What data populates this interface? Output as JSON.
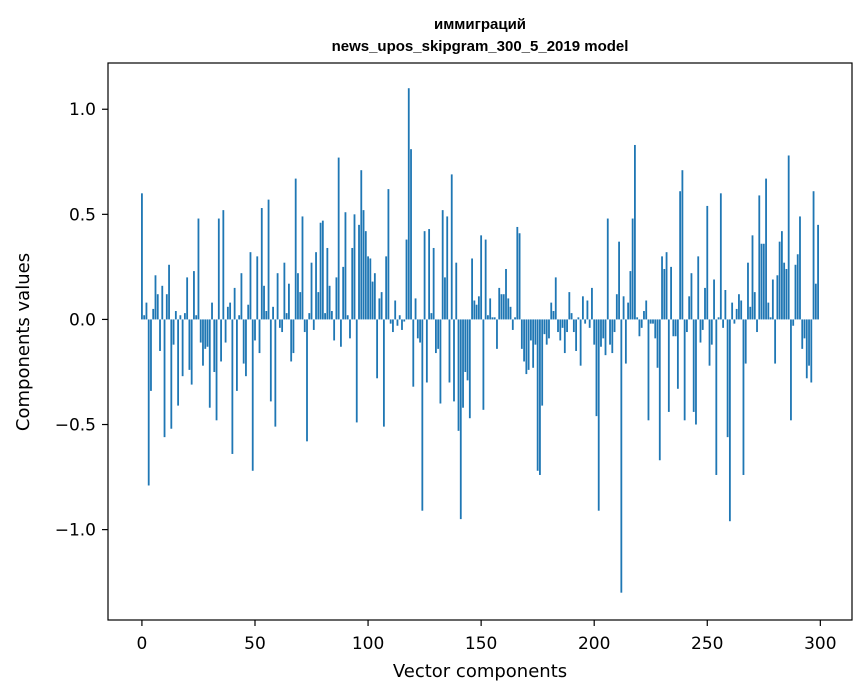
{
  "chart_data": {
    "type": "bar",
    "title_line1": "иммиграций",
    "title_line2": "news_upos_skipgram_300_5_2019 model",
    "xlabel": "Vector components",
    "ylabel": "Components values",
    "xlim": [
      -15,
      314
    ],
    "ylim": [
      -1.43,
      1.22
    ],
    "xticks": [
      0,
      50,
      100,
      150,
      200,
      250,
      300
    ],
    "xtick_labels": [
      "0",
      "50",
      "100",
      "150",
      "200",
      "250",
      "300"
    ],
    "yticks": [
      -1.0,
      -0.5,
      0.0,
      0.5,
      1.0
    ],
    "ytick_labels": [
      "−1.0",
      "−0.5",
      "0.0",
      "0.5",
      "1.0"
    ],
    "bar_color": "#1f77b4",
    "grid": false,
    "values": [
      0.6,
      0.02,
      0.08,
      -0.79,
      -0.34,
      0.05,
      0.21,
      0.12,
      -0.15,
      0.16,
      -0.56,
      0.12,
      0.26,
      -0.52,
      -0.12,
      0.04,
      -0.41,
      0.02,
      -0.27,
      0.03,
      0.2,
      -0.24,
      -0.31,
      0.23,
      0.02,
      0.48,
      -0.11,
      -0.22,
      -0.14,
      -0.13,
      -0.42,
      0.08,
      -0.25,
      -0.48,
      0.48,
      -0.2,
      0.52,
      -0.11,
      0.06,
      0.08,
      -0.64,
      0.15,
      -0.34,
      0.02,
      0.22,
      -0.21,
      -0.27,
      0.07,
      0.32,
      -0.72,
      -0.1,
      0.3,
      -0.16,
      0.53,
      0.16,
      0.04,
      0.57,
      -0.39,
      0.06,
      -0.51,
      0.22,
      -0.04,
      -0.06,
      0.27,
      0.03,
      0.17,
      -0.2,
      -0.16,
      0.67,
      0.22,
      0.13,
      0.49,
      -0.06,
      -0.58,
      0.03,
      0.27,
      -0.05,
      0.32,
      0.13,
      0.46,
      0.47,
      0.03,
      0.34,
      0.16,
      0.04,
      -0.1,
      0.2,
      0.77,
      -0.13,
      0.25,
      0.51,
      0.02,
      -0.09,
      0.34,
      0.5,
      -0.49,
      0.45,
      0.71,
      0.52,
      0.42,
      0.3,
      0.29,
      0.18,
      0.22,
      -0.28,
      0.1,
      0.13,
      -0.51,
      0.3,
      0.62,
      -0.02,
      -0.06,
      0.09,
      -0.03,
      0.02,
      -0.05,
      -0.01,
      0.38,
      1.1,
      0.81,
      -0.32,
      0.1,
      -0.09,
      -0.11,
      -0.91,
      0.42,
      -0.3,
      0.43,
      0.03,
      0.34,
      -0.16,
      -0.14,
      -0.4,
      0.52,
      0.2,
      0.49,
      -0.3,
      0.69,
      -0.39,
      0.27,
      -0.53,
      -0.95,
      -0.42,
      -0.25,
      -0.29,
      -0.47,
      0.29,
      0.09,
      0.07,
      0.11,
      0.4,
      -0.43,
      0.38,
      0.02,
      0.1,
      0.01,
      0.01,
      -0.14,
      0.15,
      0.12,
      0.12,
      0.24,
      0.1,
      0.06,
      -0.05,
      0.01,
      0.44,
      0.41,
      -0.14,
      -0.2,
      -0.26,
      -0.24,
      -0.1,
      -0.23,
      -0.12,
      -0.72,
      -0.74,
      -0.41,
      -0.07,
      -0.12,
      -0.09,
      0.08,
      0.04,
      0.2,
      -0.06,
      -0.1,
      -0.04,
      -0.16,
      -0.06,
      0.13,
      0.03,
      -0.06,
      -0.15,
      0.01,
      -0.22,
      0.11,
      -0.02,
      0.09,
      -0.04,
      0.15,
      -0.12,
      -0.46,
      -0.91,
      -0.13,
      -0.09,
      -0.17,
      0.48,
      -0.12,
      -0.16,
      -0.06,
      0.12,
      0.37,
      -1.3,
      0.11,
      -0.21,
      0.08,
      0.23,
      0.48,
      0.83,
      0.01,
      -0.08,
      -0.04,
      0.04,
      0.09,
      -0.48,
      -0.02,
      -0.02,
      -0.09,
      -0.23,
      -0.67,
      0.3,
      0.24,
      0.32,
      -0.44,
      0.25,
      -0.08,
      -0.08,
      -0.33,
      0.61,
      0.71,
      -0.48,
      -0.06,
      0.11,
      0.22,
      -0.44,
      -0.5,
      0.3,
      -0.11,
      -0.05,
      0.15,
      0.54,
      -0.22,
      -0.12,
      0.19,
      -0.74,
      0.01,
      0.6,
      -0.04,
      0.14,
      -0.56,
      -0.96,
      0.08,
      -0.02,
      0.05,
      0.12,
      0.09,
      -0.74,
      -0.21,
      0.27,
      0.06,
      0.4,
      0.13,
      -0.06,
      0.59,
      0.36,
      0.36,
      0.67,
      0.08,
      0.01,
      0.19,
      -0.21,
      0.21,
      0.37,
      0.42,
      0.27,
      0.24,
      0.78,
      -0.48,
      -0.03,
      0.26,
      0.31,
      0.49,
      -0.14,
      -0.09,
      -0.28,
      -0.22,
      -0.3,
      0.61,
      0.17,
      0.45
    ]
  }
}
